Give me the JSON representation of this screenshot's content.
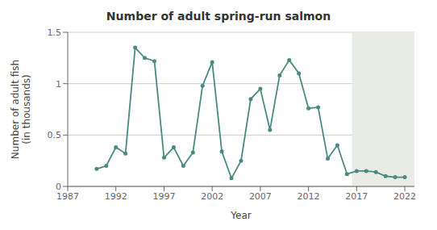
{
  "chart_data": {
    "type": "line",
    "title": "Number of adult spring-run salmon",
    "x_label": "Year",
    "y_label": "Number of adult fish\n(in thousands)",
    "x": [
      1990,
      1991,
      1992,
      1993,
      1994,
      1995,
      1996,
      1997,
      1998,
      1999,
      2000,
      2001,
      2002,
      2003,
      2004,
      2005,
      2006,
      2007,
      2008,
      2009,
      2010,
      2011,
      2012,
      2013,
      2014,
      2015,
      2016,
      2017,
      2018,
      2019,
      2020,
      2021,
      2022
    ],
    "values": [
      0.17,
      0.2,
      0.38,
      0.32,
      1.35,
      1.25,
      1.22,
      0.28,
      0.38,
      0.2,
      0.33,
      0.98,
      1.21,
      0.34,
      0.08,
      0.25,
      0.85,
      0.95,
      0.55,
      1.08,
      1.23,
      1.1,
      0.76,
      0.77,
      0.27,
      0.4,
      0.12,
      0.15,
      0.15,
      0.14,
      0.1,
      0.09,
      0.09
    ],
    "color": "#4a8a82",
    "marker": "circle",
    "xlim": [
      1987,
      2023
    ],
    "ylim": [
      0,
      1.5
    ],
    "xticks": [
      1987,
      1992,
      1997,
      2002,
      2007,
      2012,
      2017,
      2022
    ],
    "yticks": [
      0,
      0.5,
      1,
      1.5
    ],
    "grid": "y",
    "shaded_region": {
      "from": 2016.5,
      "to": 2023,
      "color": "#e8ece5"
    }
  }
}
